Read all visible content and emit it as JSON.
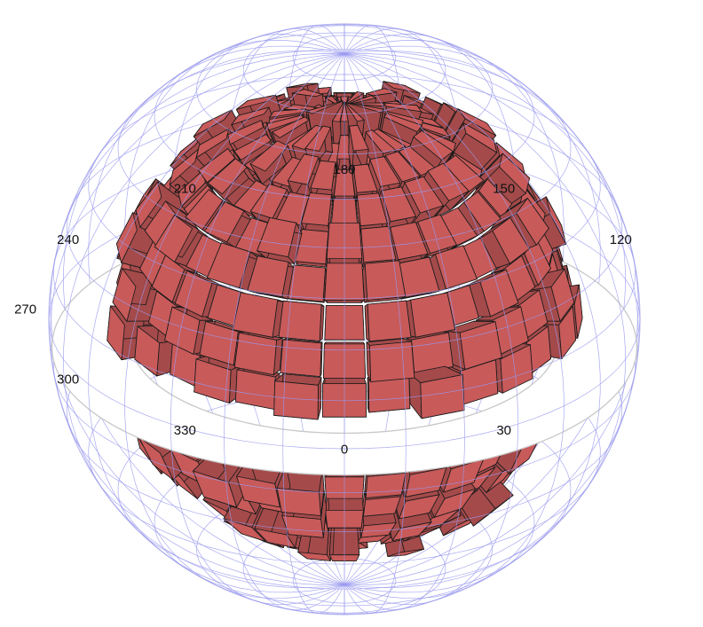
{
  "chart_data": {
    "type": "3d-spherical-histogram",
    "projection": "orthographic-sphere",
    "azimuth_labels": [
      "0",
      "30",
      "120",
      "150",
      "180",
      "210",
      "240",
      "270",
      "300",
      "330"
    ],
    "azimuth_ticks_deg": [
      0,
      30,
      120,
      150,
      180,
      210,
      240,
      270,
      300,
      330
    ],
    "equatorial_ring": true,
    "wireframe_sphere": true,
    "gap_band_lat_deg": [
      -14,
      -4
    ],
    "lat_bins_deg": 10,
    "lon_bins_deg": 12,
    "highlight_bins": [
      {
        "lat": 45,
        "lon": 125,
        "value": 1.0
      },
      {
        "lat": 35,
        "lon": 130,
        "value": 1.0
      },
      {
        "lat": -20,
        "lon": 270,
        "value": 1.0
      },
      {
        "lat": 5,
        "lon": 270,
        "value": 0.6
      }
    ],
    "colors": {
      "bar_base": "#c85a5a",
      "bar_highlight": "#f07878",
      "edge": "#1a1a1a",
      "wireframe": "#9a9af0",
      "ring": "#c8c8c8"
    },
    "title": "",
    "legend": "none"
  }
}
